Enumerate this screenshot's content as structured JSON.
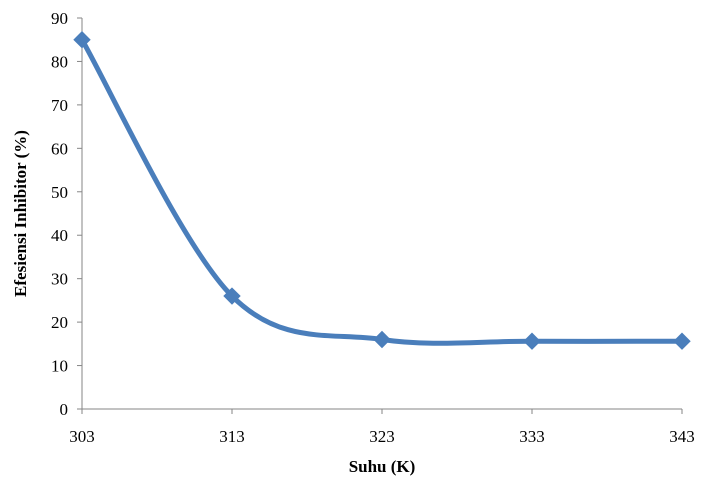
{
  "chart_data": {
    "type": "line",
    "title": "",
    "xlabel": "Suhu (K)",
    "ylabel": "Efesiensi Inhibitor (%)",
    "x": [
      303,
      313,
      323,
      333,
      343
    ],
    "x_tick_labels": [
      "303",
      "313",
      "323",
      "333",
      "343"
    ],
    "ylim": [
      0,
      90
    ],
    "y_ticks": [
      0,
      10,
      20,
      30,
      40,
      50,
      60,
      70,
      80,
      90
    ],
    "y_tick_labels": [
      "0",
      "10",
      "20",
      "30",
      "40",
      "50",
      "60",
      "70",
      "80",
      "90"
    ],
    "series": [
      {
        "values": [
          85,
          26,
          16,
          15.6,
          15.6
        ],
        "color": "#4a7ebb",
        "marker": "diamond",
        "smooth": true
      }
    ],
    "grid": false,
    "legend": "none"
  }
}
